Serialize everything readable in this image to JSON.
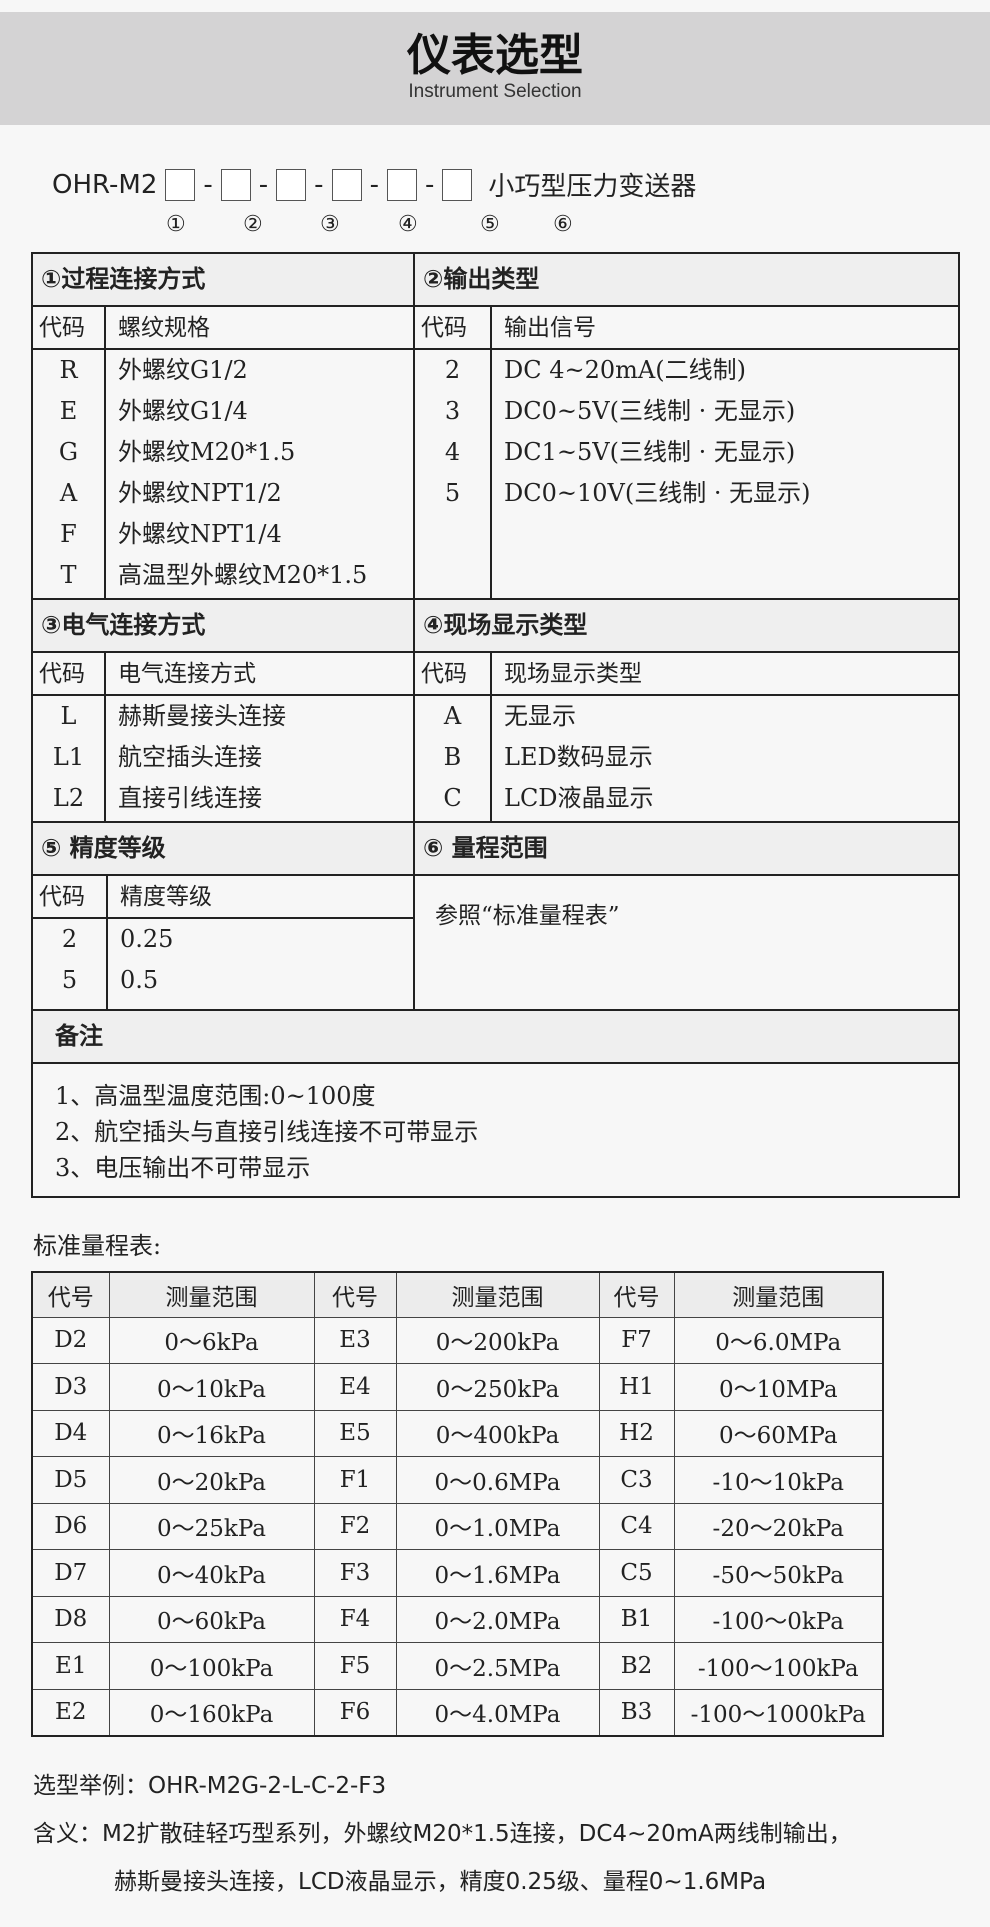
{
  "header": {
    "title": "仪表选型",
    "subtitle": "Instrument Selection"
  },
  "model": {
    "prefix": "OHR-M2",
    "sep": "-",
    "suffix": "小巧型压力变送器",
    "markers": [
      "①",
      "②",
      "③",
      "④",
      "⑤",
      "⑥"
    ]
  },
  "sections": {
    "s1": {
      "title": "①过程连接方式",
      "code_label": "代码",
      "value_label": "螺纹规格",
      "rows": [
        [
          "R",
          "外螺纹G1/2"
        ],
        [
          "E",
          "外螺纹G1/4"
        ],
        [
          "G",
          "外螺纹M20*1.5"
        ],
        [
          "A",
          "外螺纹NPT1/2"
        ],
        [
          "F",
          "外螺纹NPT1/4"
        ],
        [
          "T",
          "高温型外螺纹M20*1.5"
        ]
      ]
    },
    "s2": {
      "title": "②输出类型",
      "code_label": "代码",
      "value_label": "输出信号",
      "rows": [
        [
          "2",
          "DC 4~20mA(二线制)"
        ],
        [
          "3",
          "DC0~5V(三线制 · 无显示)"
        ],
        [
          "4",
          "DC1~5V(三线制 · 无显示)"
        ],
        [
          "5",
          "DC0~10V(三线制 · 无显示)"
        ]
      ]
    },
    "s3": {
      "title": "③电气连接方式",
      "code_label": "代码",
      "value_label": "电气连接方式",
      "rows": [
        [
          "L",
          "赫斯曼接头连接"
        ],
        [
          "L1",
          "航空插头连接"
        ],
        [
          "L2",
          "直接引线连接"
        ]
      ]
    },
    "s4": {
      "title": "④现场显示类型",
      "code_label": "代码",
      "value_label": "现场显示类型",
      "rows": [
        [
          "A",
          "无显示"
        ],
        [
          "B",
          "LED数码显示"
        ],
        [
          "C",
          "LCD液晶显示"
        ]
      ]
    },
    "s5": {
      "title": "⑤ 精度等级",
      "code_label": "代码",
      "value_label": "精度等级",
      "rows": [
        [
          "2",
          "0.25"
        ],
        [
          "5",
          "0.5"
        ]
      ]
    },
    "s6": {
      "title": "⑥ 量程范围",
      "text": "参照“标准量程表”"
    }
  },
  "notes": {
    "title": "备注",
    "items": [
      "1、高温型温度范围:0~100度",
      "2、航空插头与直接引线连接不可带显示",
      "3、电压输出不可带显示"
    ]
  },
  "range_table": {
    "label": "标准量程表:",
    "headers": [
      "代号",
      "测量范围",
      "代号",
      "测量范围",
      "代号",
      "测量范围"
    ],
    "rows": [
      [
        "D2",
        "0～6kPa",
        "E3",
        "0～200kPa",
        "F7",
        "0～6.0MPa"
      ],
      [
        "D3",
        "0～10kPa",
        "E4",
        "0～250kPa",
        "H1",
        "0～10MPa"
      ],
      [
        "D4",
        "0～16kPa",
        "E5",
        "0～400kPa",
        "H2",
        "0～60MPa"
      ],
      [
        "D5",
        "0～20kPa",
        "F1",
        "0～0.6MPa",
        "C3",
        "-10～10kPa"
      ],
      [
        "D6",
        "0～25kPa",
        "F2",
        "0～1.0MPa",
        "C4",
        "-20～20kPa"
      ],
      [
        "D7",
        "0～40kPa",
        "F3",
        "0～1.6MPa",
        "C5",
        "-50～50kPa"
      ],
      [
        "D8",
        "0～60kPa",
        "F4",
        "0～2.0MPa",
        "B1",
        "-100～0kPa"
      ],
      [
        "E1",
        "0～100kPa",
        "F5",
        "0～2.5MPa",
        "B2",
        "-100～100kPa"
      ],
      [
        "E2",
        "0～160kPa",
        "F6",
        "0～4.0MPa",
        "B3",
        "-100～1000kPa"
      ]
    ]
  },
  "example": {
    "line1": "选型举例：OHR-M2G-2-L-C-2-F3",
    "line2": "含义：M2扩散硅轻巧型系列，外螺纹M20*1.5连接，DC4~20mA两线制输出，",
    "line3": "赫斯曼接头连接，LCD液晶显示，精度0.25级、量程0~1.6MPa"
  }
}
